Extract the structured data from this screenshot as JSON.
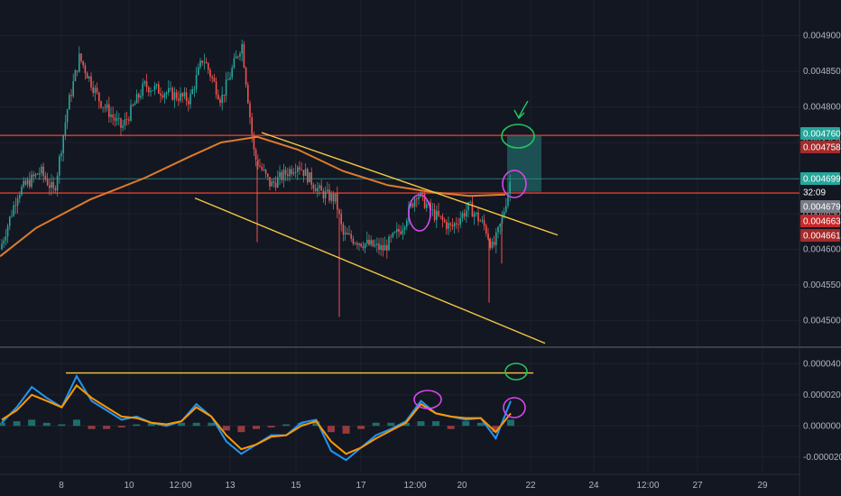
{
  "colors": {
    "background": "#131722",
    "grid": "#1e2230",
    "axis_text": "#b2b5be",
    "candle_up": "#26a69a",
    "candle_down": "#ef5350",
    "ema": "#e07b2a",
    "hline": "#c0392b",
    "trendline": "#f5c842",
    "position_zone": "#1f5a5a",
    "stop_zone": "#5a2a30",
    "macd": "#2196f3",
    "signal": "#ff9800",
    "circle_green": "#22c55e",
    "circle_pink": "#d946ef",
    "divider": "#2a2e39"
  },
  "chart_data": [
    {
      "type": "candlestick",
      "pane": "price",
      "y_ticks": [
        "0.004900",
        "0.004850",
        "0.004800",
        "0.004750",
        "0.004700",
        "0.004650",
        "0.004600",
        "0.004550",
        "0.004500"
      ],
      "ylim": [
        0.004465,
        0.004935
      ],
      "x_ticks": [
        "8",
        "10",
        "12:00",
        "13",
        "15",
        "17",
        "12:00",
        "20",
        "22",
        "24",
        "12:00",
        "27",
        "29"
      ],
      "price_tags": [
        {
          "label": "0.004760",
          "value": 0.00476,
          "color": "#26a69a"
        },
        {
          "label": "0.004758",
          "value": 0.004758,
          "color": "#a52a2a"
        },
        {
          "label": "0.004699",
          "value": 0.004699,
          "color": "#26a69a"
        },
        {
          "label": "32:09",
          "value": 0.004685,
          "color": "#131722"
        },
        {
          "label": "0.004679",
          "value": 0.004679,
          "color": "#787b86"
        },
        {
          "label": "0.004663",
          "value": 0.004663,
          "color": "#c62828"
        },
        {
          "label": "0.004661",
          "value": 0.004661,
          "color": "#a52a2a"
        }
      ],
      "horizontal_lines": [
        0.00476,
        0.004679
      ],
      "current_price": 0.004699
    },
    {
      "type": "line",
      "pane": "macd",
      "y_ticks": [
        "0.000040",
        "0.000020",
        "0.000000",
        "-0.000020"
      ],
      "ylim": [
        -3e-05,
        5e-05
      ],
      "series": [
        {
          "values": [
            2e-06,
            1.2e-05,
            2.5e-05,
            1.8e-05,
            1.2e-05,
            3.2e-05,
            1.6e-05,
            1e-05,
            4e-06,
            6e-06,
            2e-06,
            0.0,
            3e-06,
            1.4e-05,
            6e-06,
            -1e-05,
            -1.8e-05,
            -1.2e-05,
            -6e-06,
            -6e-06,
            2e-06,
            4e-06,
            -1.6e-05,
            -2.2e-05,
            -1.4e-05,
            -6e-06,
            -2e-06,
            3e-06,
            1.6e-05,
            8e-06,
            6e-06,
            4e-06,
            5e-06,
            -8e-06,
            1.6e-05
          ]
        },
        {
          "values": [
            4e-06,
            1e-05,
            2e-05,
            1.6e-05,
            1.2e-05,
            2.6e-05,
            1.8e-05,
            1.2e-05,
            6e-06,
            5e-06,
            2e-06,
            1e-06,
            3e-06,
            1.2e-05,
            6e-06,
            -6e-06,
            -1.5e-05,
            -1.2e-05,
            -7e-06,
            -6e-06,
            0.0,
            3e-06,
            -1e-05,
            -1.8e-05,
            -1.4e-05,
            -8e-06,
            -3e-06,
            2e-06,
            1.4e-05,
            8e-06,
            6e-06,
            5e-06,
            5e-06,
            -4e-06,
            8e-06
          ]
        }
      ],
      "histogram": [
        2e-06,
        3e-06,
        4e-06,
        2e-06,
        1e-06,
        4e-06,
        -2e-06,
        -2e-06,
        -1e-06,
        1e-06,
        2e-06,
        1e-06,
        2e-06,
        2e-06,
        2e-06,
        -3e-06,
        -4e-06,
        -2e-06,
        -1e-06,
        1e-06,
        2e-06,
        3e-06,
        -4e-06,
        -5e-06,
        -2e-06,
        2e-06,
        2e-06,
        2e-06,
        3e-06,
        3e-06,
        -2e-06,
        3e-06,
        2e-06,
        -4e-06,
        4e-06
      ],
      "horizontal_lines": [
        3.4e-05
      ]
    }
  ]
}
